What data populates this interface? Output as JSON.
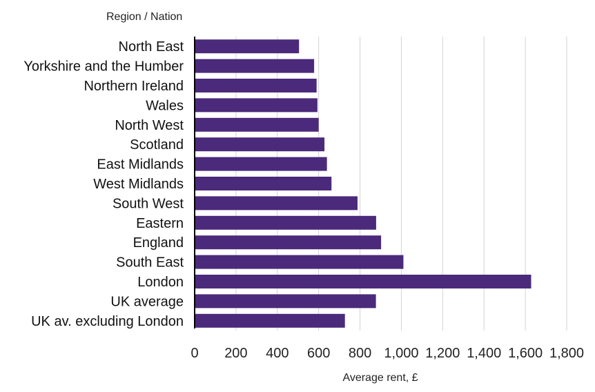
{
  "chart_data": {
    "type": "bar",
    "orientation": "horizontal",
    "title": "",
    "ylabel": "Region / Nation",
    "xlabel": "Average rent, £",
    "categories": [
      "North East",
      "Yorkshire and the Humber",
      "Northern Ireland",
      "Wales",
      "North West",
      "Scotland",
      "East Midlands",
      "West Midlands",
      "South West",
      "Eastern",
      "England",
      "South East",
      "London",
      "UK average",
      "UK av. excluding London"
    ],
    "values": [
      505,
      578,
      590,
      594,
      600,
      628,
      640,
      662,
      788,
      878,
      902,
      1010,
      1628,
      877,
      727
    ],
    "xlim": [
      0,
      1800
    ],
    "xticks": [
      "0",
      "200",
      "400",
      "600",
      "800",
      "1,000",
      "1,200",
      "1,400",
      "1,600",
      "1,800"
    ],
    "grid": "vertical",
    "legend": "none",
    "bar_color": "#4b2a7b"
  }
}
